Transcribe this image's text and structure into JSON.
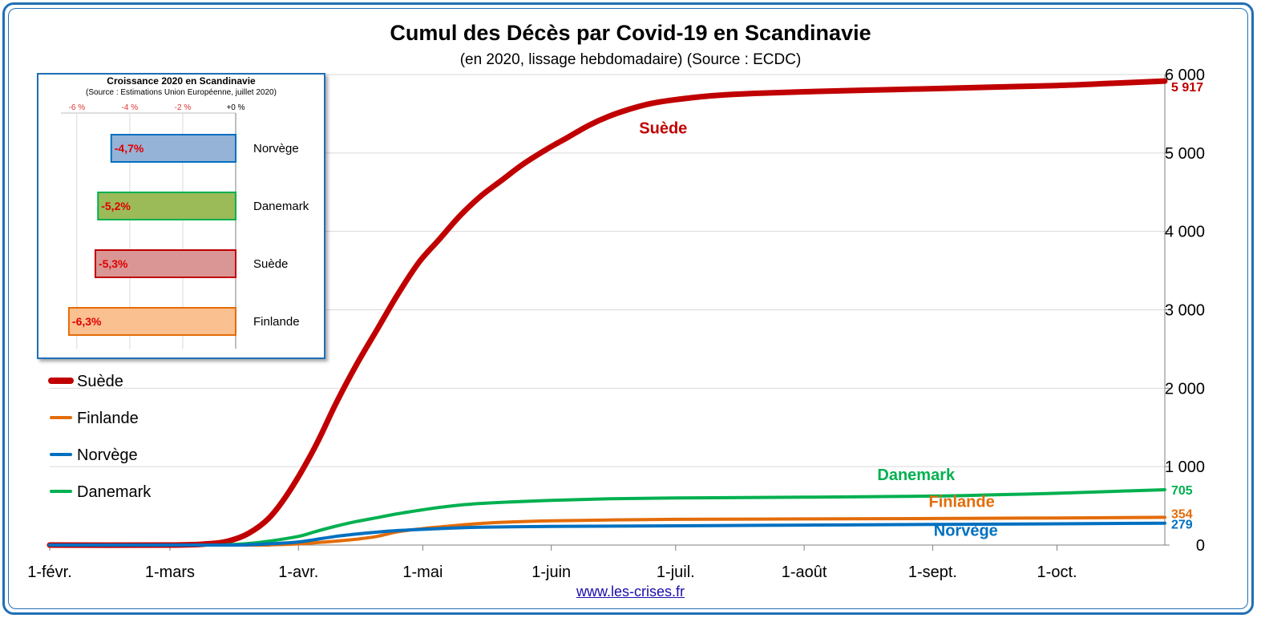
{
  "chart_data": [
    {
      "type": "line",
      "title": "Cumul des Décès par Covid-19 en Scandinavie",
      "subtitle": "(en 2020, lissage hebdomadaire) (Source : ECDC)",
      "x_tick_labels": [
        "1-févr.",
        "1-mars",
        "1-avr.",
        "1-mai",
        "1-juin",
        "1-juil.",
        "1-août",
        "1-sept.",
        "1-oct."
      ],
      "x_ticks": [
        "2020-02-01",
        "2020-03-01",
        "2020-04-01",
        "2020-05-01",
        "2020-06-01",
        "2020-07-01",
        "2020-08-01",
        "2020-09-01",
        "2020-10-01"
      ],
      "x_range": [
        "2020-02-01",
        "2020-10-27"
      ],
      "y_tick_labels": [
        "0",
        "1 000",
        "2 000",
        "3 000",
        "4 000",
        "5 000",
        "6 000"
      ],
      "y_ticks": [
        0,
        1000,
        2000,
        3000,
        4000,
        5000,
        6000
      ],
      "ylim": [
        0,
        6000
      ],
      "y_axis_side": "right",
      "grid": "horizontal",
      "legend_position": "left",
      "legend": [
        "Suède",
        "Finlande",
        "Norvège",
        "Danemark"
      ],
      "series": [
        {
          "name": "Suède",
          "color": "#c00000",
          "end_label": "5 917",
          "points": [
            [
              "2020-02-01",
              0
            ],
            [
              "2020-03-01",
              0
            ],
            [
              "2020-03-10",
              15
            ],
            [
              "2020-03-15",
              50
            ],
            [
              "2020-03-20",
              150
            ],
            [
              "2020-03-25",
              350
            ],
            [
              "2020-03-30",
              700
            ],
            [
              "2020-04-05",
              1250
            ],
            [
              "2020-04-10",
              1800
            ],
            [
              "2020-04-15",
              2300
            ],
            [
              "2020-04-20",
              2750
            ],
            [
              "2020-04-25",
              3200
            ],
            [
              "2020-04-30",
              3600
            ],
            [
              "2020-05-05",
              3900
            ],
            [
              "2020-05-10",
              4200
            ],
            [
              "2020-05-15",
              4450
            ],
            [
              "2020-05-20",
              4650
            ],
            [
              "2020-05-25",
              4850
            ],
            [
              "2020-05-31",
              5050
            ],
            [
              "2020-06-05",
              5200
            ],
            [
              "2020-06-10",
              5350
            ],
            [
              "2020-06-15",
              5470
            ],
            [
              "2020-06-20",
              5560
            ],
            [
              "2020-06-25",
              5630
            ],
            [
              "2020-07-01",
              5680
            ],
            [
              "2020-07-10",
              5730
            ],
            [
              "2020-07-20",
              5760
            ],
            [
              "2020-08-01",
              5780
            ],
            [
              "2020-08-15",
              5800
            ],
            [
              "2020-09-01",
              5820
            ],
            [
              "2020-09-15",
              5840
            ],
            [
              "2020-10-01",
              5860
            ],
            [
              "2020-10-15",
              5890
            ],
            [
              "2020-10-27",
              5917
            ]
          ]
        },
        {
          "name": "Danemark",
          "color": "#00b050",
          "end_label": "705",
          "points": [
            [
              "2020-02-01",
              0
            ],
            [
              "2020-03-10",
              0
            ],
            [
              "2020-03-15",
              5
            ],
            [
              "2020-03-20",
              20
            ],
            [
              "2020-03-25",
              50
            ],
            [
              "2020-04-01",
              110
            ],
            [
              "2020-04-05",
              170
            ],
            [
              "2020-04-10",
              240
            ],
            [
              "2020-04-15",
              300
            ],
            [
              "2020-04-20",
              350
            ],
            [
              "2020-04-25",
              400
            ],
            [
              "2020-05-01",
              450
            ],
            [
              "2020-05-05",
              480
            ],
            [
              "2020-05-10",
              510
            ],
            [
              "2020-05-15",
              530
            ],
            [
              "2020-05-20",
              545
            ],
            [
              "2020-06-01",
              570
            ],
            [
              "2020-06-15",
              590
            ],
            [
              "2020-07-01",
              600
            ],
            [
              "2020-08-01",
              610
            ],
            [
              "2020-09-01",
              625
            ],
            [
              "2020-09-15",
              640
            ],
            [
              "2020-10-01",
              660
            ],
            [
              "2020-10-15",
              685
            ],
            [
              "2020-10-27",
              705
            ]
          ]
        },
        {
          "name": "Finlande",
          "color": "#e36c09",
          "end_label": "354",
          "points": [
            [
              "2020-02-01",
              0
            ],
            [
              "2020-03-20",
              0
            ],
            [
              "2020-03-25",
              3
            ],
            [
              "2020-04-01",
              15
            ],
            [
              "2020-04-05",
              30
            ],
            [
              "2020-04-10",
              50
            ],
            [
              "2020-04-15",
              75
            ],
            [
              "2020-04-20",
              110
            ],
            [
              "2020-04-25",
              170
            ],
            [
              "2020-05-01",
              210
            ],
            [
              "2020-05-05",
              230
            ],
            [
              "2020-05-10",
              255
            ],
            [
              "2020-05-15",
              275
            ],
            [
              "2020-05-20",
              290
            ],
            [
              "2020-06-01",
              310
            ],
            [
              "2020-06-15",
              320
            ],
            [
              "2020-07-01",
              328
            ],
            [
              "2020-08-01",
              333
            ],
            [
              "2020-09-01",
              338
            ],
            [
              "2020-10-01",
              345
            ],
            [
              "2020-10-27",
              354
            ]
          ]
        },
        {
          "name": "Norvège",
          "color": "#0070c0",
          "end_label": "279",
          "points": [
            [
              "2020-02-01",
              0
            ],
            [
              "2020-03-15",
              0
            ],
            [
              "2020-03-20",
              5
            ],
            [
              "2020-03-25",
              15
            ],
            [
              "2020-04-01",
              40
            ],
            [
              "2020-04-05",
              70
            ],
            [
              "2020-04-10",
              110
            ],
            [
              "2020-04-15",
              140
            ],
            [
              "2020-04-20",
              165
            ],
            [
              "2020-04-25",
              185
            ],
            [
              "2020-05-01",
              200
            ],
            [
              "2020-05-05",
              210
            ],
            [
              "2020-05-10",
              220
            ],
            [
              "2020-05-15",
              228
            ],
            [
              "2020-06-01",
              238
            ],
            [
              "2020-07-01",
              245
            ],
            [
              "2020-08-01",
              255
            ],
            [
              "2020-09-01",
              263
            ],
            [
              "2020-10-01",
              271
            ],
            [
              "2020-10-27",
              279
            ]
          ]
        }
      ],
      "annotations": [
        {
          "text": "Suède",
          "x": "2020-06-28",
          "y": 5250,
          "color": "#c00000"
        },
        {
          "text": "Danemark",
          "x": "2020-08-28",
          "y": 830,
          "color": "#00b050"
        },
        {
          "text": "Finlande",
          "x": "2020-09-08",
          "y": 485,
          "color": "#e36c09"
        },
        {
          "text": "Norvège",
          "x": "2020-09-09",
          "y": 120,
          "color": "#0070c0"
        }
      ]
    },
    {
      "type": "bar",
      "orientation": "horizontal",
      "title": "Croissance 2020 en Scandinavie",
      "subtitle": "(Source : Estimations Union Européenne, juillet 2020)",
      "axis_position": "top",
      "x_tick_labels": [
        "-6 %",
        "-4 %",
        "-2 %",
        "+0 %"
      ],
      "x_ticks": [
        -6,
        -4,
        -2,
        0
      ],
      "xlim": [
        -6.6,
        0
      ],
      "categories": [
        "Norvège",
        "Danemark",
        "Suède",
        "Finlande"
      ],
      "values": [
        -4.7,
        -5.2,
        -5.3,
        -6.3
      ],
      "value_labels": [
        "-4,7%",
        "-5,2%",
        "-5,3%",
        "-6,3%"
      ],
      "fill_colors": [
        "#95b3d7",
        "#9bbb59",
        "#d99694",
        "#fac090"
      ],
      "border_colors": [
        "#0070c0",
        "#00b050",
        "#c00000",
        "#e36c09"
      ]
    }
  ],
  "footer": {
    "link": "www.les-crises.fr"
  }
}
